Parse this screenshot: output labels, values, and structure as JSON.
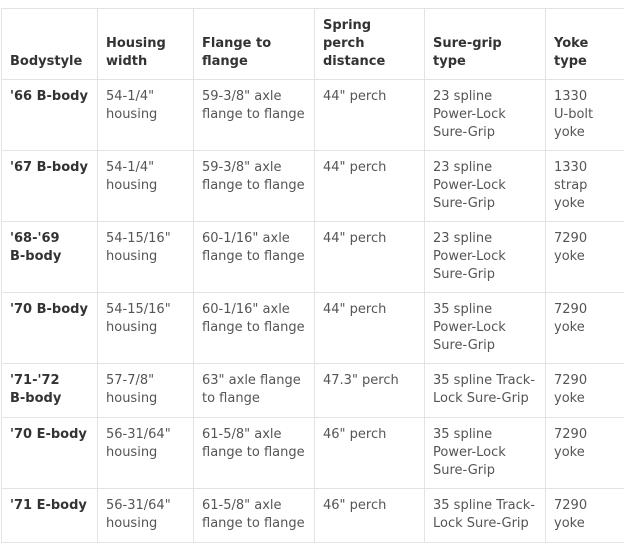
{
  "headers": [
    "Bodystyle",
    "Housing\nwidth",
    "Flange to\nflange",
    "Spring perch\ndistance",
    "Sure-grip type",
    "Yoke\ntype"
  ],
  "rows": [
    [
      "'66 B-body",
      "54-1/4\"\nhousing",
      "59-3/8\" axle\nflange to flange",
      "44\" perch",
      "23 spline\nPower-Lock\nSure-Grip",
      "1330\nU-bolt\nyoke"
    ],
    [
      "'67 B-body",
      "54-1/4\"\nhousing",
      "59-3/8\" axle\nflange to flange",
      "44\" perch",
      "23 spline\nPower-Lock\nSure-Grip",
      "1330\nstrap\nyoke"
    ],
    [
      "'68-'69\nB-body",
      "54-15/16\"\nhousing",
      "60-1/16\" axle\nflange to flange",
      "44\" perch",
      "23 spline\nPower-Lock\nSure-Grip",
      "7290\nyoke"
    ],
    [
      "'70 B-body",
      "54-15/16\"\nhousing",
      "60-1/16\" axle\nflange to flange",
      "44\" perch",
      "35 spline\nPower-Lock\nSure-Grip",
      "7290\nyoke"
    ],
    [
      "'71-'72\nB-body",
      "57-7/8\"\nhousing",
      "63\" axle flange\nto flange",
      "47.3\" perch",
      "35 spline Track-\nLock Sure-Grip",
      "7290\nyoke"
    ],
    [
      "'70 E-body",
      "56-31/64\"\nhousing",
      "61-5/8\" axle\nflange to flange",
      "46\" perch",
      "35 spline\nPower-Lock\nSure-Grip",
      "7290\nyoke"
    ],
    [
      "'71 E-body",
      "56-31/64\"\nhousing",
      "61-5/8\" axle\nflange to flange",
      "46\" perch",
      "35 spline Track-\nLock Sure-Grip",
      "7290\nyoke"
    ]
  ]
}
